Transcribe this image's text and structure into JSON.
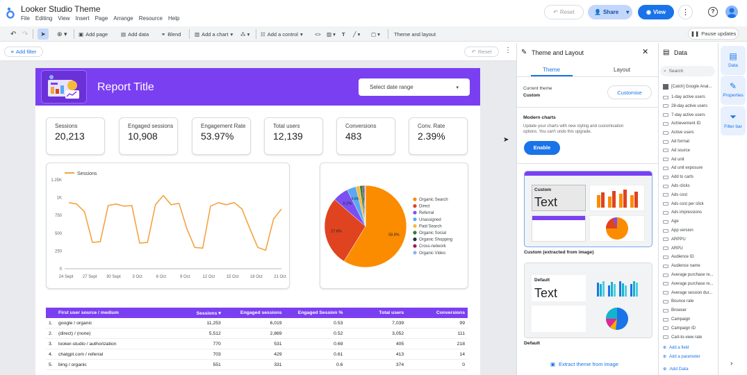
{
  "app": {
    "title": "Looker Studio Theme",
    "menu": [
      "File",
      "Editing",
      "View",
      "Insert",
      "Page",
      "Arrange",
      "Resource",
      "Help"
    ],
    "reset_label": "Reset",
    "share_label": "Share",
    "view_label": "View"
  },
  "toolbar": {
    "add_page": "Add page",
    "add_data": "Add data",
    "blend": "Blend",
    "add_chart": "Add a chart",
    "add_control": "Add a control",
    "theme_layout": "Theme and layout",
    "pause_updates": "Pause updates"
  },
  "filterbar": {
    "add_filter": "Add filter",
    "reset": "Reset"
  },
  "report": {
    "title": "Report Title",
    "date_range": "Select date range",
    "kpis": [
      {
        "label": "Sessions",
        "value": "20,213"
      },
      {
        "label": "Engaged sessions",
        "value": "10,908"
      },
      {
        "label": "Engagement Rate",
        "value": "53.97%"
      },
      {
        "label": "Total users",
        "value": "12,139"
      },
      {
        "label": "Conversions",
        "value": "483"
      },
      {
        "label": "Conv. Rate",
        "value": "2.39%"
      }
    ],
    "table": {
      "headers": [
        "First user source / medium",
        "Sessions ▾",
        "Engaged sessions",
        "Engaged Session %",
        "Total users",
        "Conversions"
      ],
      "rows": [
        [
          "1.",
          "google / organic",
          "11,253",
          "6,019",
          "0.53",
          "7,039",
          "99"
        ],
        [
          "2.",
          "(direct) / (none)",
          "5,512",
          "2,869",
          "0.52",
          "3,052",
          "111"
        ],
        [
          "3.",
          "looker-studio / authorization",
          "770",
          "531",
          "0.69",
          "405",
          "218"
        ],
        [
          "4.",
          "chatgpt.com / referral",
          "703",
          "429",
          "0.61",
          "413",
          "14"
        ],
        [
          "5.",
          "bing / organic",
          "551",
          "331",
          "0.6",
          "374",
          "0"
        ]
      ]
    }
  },
  "chart_data": [
    {
      "type": "line",
      "title": "",
      "legend": [
        "Sessions"
      ],
      "color": "#f4a340",
      "xlabels": [
        "24 Sept",
        "27 Sept",
        "30 Sept",
        "3 Oct",
        "6 Oct",
        "9 Oct",
        "12 Oct",
        "15 Oct",
        "18 Oct",
        "21 Oct"
      ],
      "yticks": [
        "0",
        "250",
        "500",
        "750",
        "1K",
        "1.25K"
      ],
      "ylim": [
        0,
        1250
      ],
      "values": [
        930,
        910,
        800,
        370,
        380,
        890,
        910,
        880,
        890,
        360,
        370,
        900,
        1030,
        900,
        920,
        560,
        300,
        290,
        880,
        930,
        900,
        930,
        840,
        560,
        300,
        260,
        700,
        840
      ]
    },
    {
      "type": "pie",
      "legend_position": "right",
      "slices": [
        {
          "label": "Organic Search",
          "value": 58.8,
          "color": "#fb8c00",
          "shown": "58.8%"
        },
        {
          "label": "Direct",
          "value": 27.6,
          "color": "#e0431f",
          "shown": "27.6%"
        },
        {
          "label": "Referral",
          "value": 6.2,
          "color": "#7b4ff2",
          "shown": "6.2%"
        },
        {
          "label": "Unassigned",
          "value": 3.6,
          "color": "#5aa9f0",
          "shown": "3.6%"
        },
        {
          "label": "Paid Search",
          "value": 1.5,
          "color": "#f6b93b",
          "shown": ""
        },
        {
          "label": "Organic Social",
          "value": 1.0,
          "color": "#2e7d32",
          "shown": ""
        },
        {
          "label": "Organic Shopping",
          "value": 0.6,
          "color": "#263238",
          "shown": ""
        },
        {
          "label": "Cross-network",
          "value": 0.4,
          "color": "#ad1457",
          "shown": ""
        },
        {
          "label": "Organic Video",
          "value": 0.3,
          "color": "#8ab4f8",
          "shown": ""
        }
      ]
    }
  ],
  "theme_panel": {
    "title": "Theme and Layout",
    "tab_theme": "Theme",
    "tab_layout": "Layout",
    "current_theme_label": "Current theme",
    "current_theme_value": "Custom",
    "customise": "Customise",
    "modern_title": "Modern charts",
    "modern_desc_1": "Update your charts with new styling and customisation",
    "modern_desc_2": "options. You can't undo this upgrade.",
    "enable": "Enable",
    "custom_card_label": "Custom",
    "custom_card_text": "Text",
    "custom_caption": "Custom (extracted from image)",
    "default_card_label": "Default",
    "default_card_text": "Text",
    "default_caption": "Default",
    "extract": "Extract theme from image"
  },
  "data_panel": {
    "title": "Data",
    "search_placeholder": "Search",
    "source": "[Catch] Google Anal...",
    "fields": [
      "1-day active users",
      "28-day active users",
      "7-day active users",
      "Achievement ID",
      "Active users",
      "Ad format",
      "Ad source",
      "Ad unit",
      "Ad unit exposure",
      "Add to carts",
      "Ads clicks",
      "Ads cost",
      "Ads cost per click",
      "Ads impressions",
      "Age",
      "App version",
      "ARPPU",
      "ARPU",
      "Audience ID",
      "Audience name",
      "Average purchase re...",
      "Average purchase re...",
      "Average session dur...",
      "Bounce rate",
      "Browser",
      "Campaign",
      "Campaign ID",
      "Cart-to-view rate"
    ],
    "add_field": "Add a field",
    "add_parameter": "Add a parameter",
    "add_data": "Add Data"
  },
  "rail": {
    "data": "Data",
    "properties": "Properties",
    "filter_bar": "Filter bar"
  }
}
